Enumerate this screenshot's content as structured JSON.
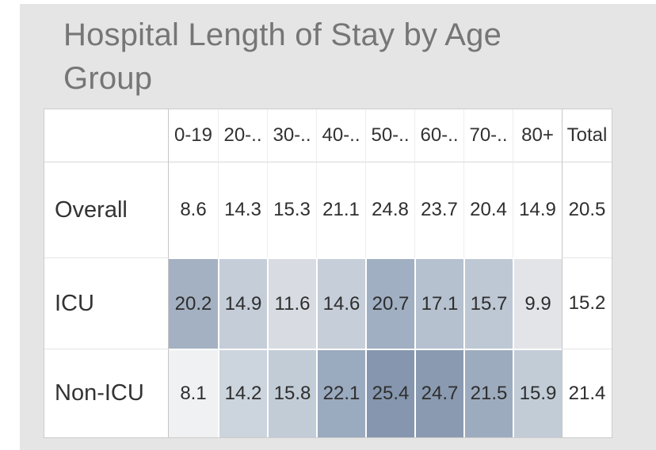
{
  "title": {
    "text": "Hospital Length of Stay by Age Group"
  },
  "chart_data": {
    "type": "heatmap",
    "title": "Hospital Length of Stay by Age Group",
    "columns": [
      "0-19",
      "20-..",
      "30-..",
      "40-..",
      "50-..",
      "60-..",
      "70-..",
      "80+",
      "Total"
    ],
    "rows": [
      {
        "label": "Overall",
        "values": [
          8.6,
          14.3,
          15.3,
          21.1,
          24.8,
          23.7,
          20.4,
          14.9
        ],
        "total": 20.5,
        "cell_colors": [
          "#ffffff",
          "#ffffff",
          "#ffffff",
          "#ffffff",
          "#ffffff",
          "#ffffff",
          "#ffffff",
          "#ffffff"
        ],
        "total_color": "#ffffff"
      },
      {
        "label": "ICU",
        "values": [
          20.2,
          14.9,
          11.6,
          14.6,
          20.7,
          17.1,
          15.7,
          9.9
        ],
        "total": 15.2,
        "cell_colors": [
          "#a4b1c2",
          "#c5cdd9",
          "#d8dce2",
          "#c6ced9",
          "#a0afc2",
          "#b6c1cf",
          "#bec8d4",
          "#e2e4e8"
        ],
        "total_color": "#ffffff"
      },
      {
        "label": "Non-ICU",
        "values": [
          8.1,
          14.2,
          15.8,
          22.1,
          25.4,
          24.7,
          21.5,
          15.9
        ],
        "total": 21.4,
        "cell_colors": [
          "#f0f1f2",
          "#ccd4dd",
          "#c2ccd7",
          "#9aaabf",
          "#8596ae",
          "#8a9ab1",
          "#9dabbe",
          "#c2ccd7"
        ],
        "total_color": "#ffffff"
      }
    ],
    "value_format": "0.0",
    "color_scale": {
      "min_color": "#f0f1f2",
      "max_color": "#8596ae"
    },
    "layout": {
      "grid": "crosstab",
      "legend": "none"
    }
  },
  "colors": {
    "page_background": "#ffffff",
    "panel_background": "#e5e5e5",
    "title_text": "#767676",
    "cell_text": "#2e2e2e",
    "grid_border": "#c6c6c6"
  }
}
